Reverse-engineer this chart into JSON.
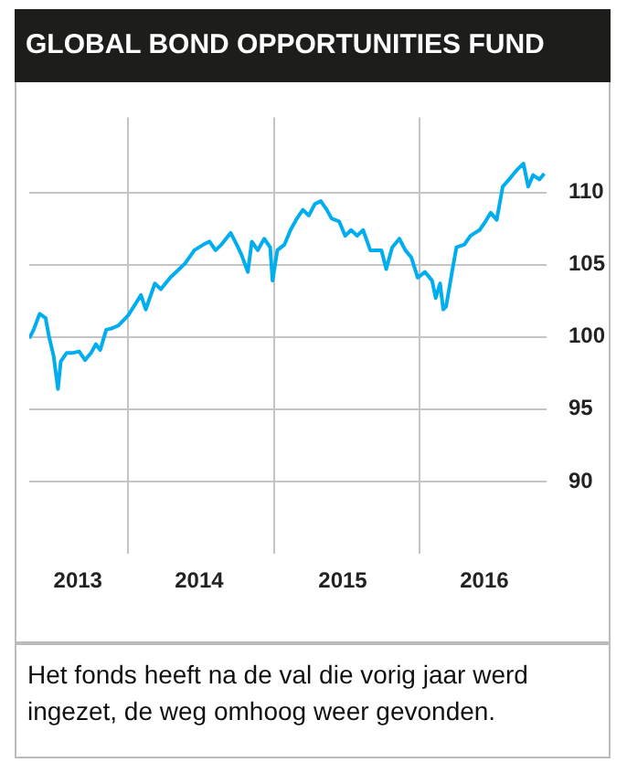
{
  "chart_data": {
    "type": "line",
    "title": "GLOBAL BOND OPPORTUNITIES FUND",
    "annotations": [
      "Het fonds heeft na de val die vorig jaar werd ingezet, de weg omhoog weer gevonden."
    ],
    "x": [
      "2013-04-28",
      "2013-05-09",
      "2013-05-24",
      "2013-06-08",
      "2013-06-16",
      "2013-06-28",
      "2013-07-09",
      "2013-07-16",
      "2013-07-31",
      "2013-08-16",
      "2013-08-31",
      "2013-09-15",
      "2013-09-30",
      "2013-10-12",
      "2013-10-23",
      "2013-11-07",
      "2013-11-22",
      "2013-12-08",
      "2014-01-01",
      "2014-01-15",
      "2014-02-02",
      "2014-02-14",
      "2014-03-09",
      "2014-03-24",
      "2014-04-16",
      "2014-05-09",
      "2014-05-24",
      "2014-06-16",
      "2014-07-09",
      "2014-07-24",
      "2014-08-08",
      "2014-08-23",
      "2014-09-15",
      "2014-09-30",
      "2014-10-12",
      "2014-10-28",
      "2014-11-07",
      "2014-11-22",
      "2014-12-08",
      "2014-12-23",
      "2014-12-29",
      "2015-01-10",
      "2015-01-28",
      "2015-02-12",
      "2015-02-28",
      "2015-03-15",
      "2015-03-30",
      "2015-04-14",
      "2015-04-29",
      "2015-05-14",
      "2015-05-26",
      "2015-06-14",
      "2015-06-29",
      "2015-07-14",
      "2015-07-29",
      "2015-08-13",
      "2015-08-31",
      "2015-09-13",
      "2015-09-28",
      "2015-10-10",
      "2015-10-25",
      "2015-11-12",
      "2015-11-27",
      "2015-12-12",
      "2015-12-28",
      "2016-01-15",
      "2016-02-02",
      "2016-02-11",
      "2016-02-22",
      "2016-03-01",
      "2016-03-08",
      "2016-03-23",
      "2016-04-03",
      "2016-04-23",
      "2016-05-08",
      "2016-05-31",
      "2016-06-15",
      "2016-06-28",
      "2016-07-13",
      "2016-07-28",
      "2016-08-16",
      "2016-09-03",
      "2016-09-18",
      "2016-09-30",
      "2016-10-12",
      "2016-10-28",
      "2016-11-09"
    ],
    "values": [
      99.9,
      100.5,
      101.6,
      101.3,
      100.1,
      98.7,
      96.4,
      98.3,
      98.9,
      98.9,
      99.0,
      98.4,
      98.9,
      99.5,
      99.1,
      100.5,
      100.6,
      100.8,
      101.5,
      102.1,
      102.9,
      101.9,
      103.7,
      103.3,
      104.1,
      104.7,
      105.1,
      106.0,
      106.4,
      106.6,
      106.0,
      106.4,
      107.2,
      106.4,
      105.7,
      104.5,
      106.6,
      106.0,
      106.8,
      106.2,
      103.9,
      106.0,
      106.4,
      107.4,
      108.2,
      108.8,
      108.4,
      109.2,
      109.4,
      108.8,
      108.2,
      108.0,
      107.0,
      107.4,
      107.0,
      107.4,
      106.0,
      106.0,
      106.0,
      104.7,
      106.2,
      106.8,
      106.0,
      105.5,
      104.1,
      104.5,
      103.9,
      102.7,
      103.7,
      101.9,
      102.1,
      104.5,
      106.2,
      106.4,
      107.0,
      107.4,
      108.0,
      108.6,
      108.1,
      110.4,
      111.0,
      111.6,
      112.0,
      110.4,
      111.2,
      110.9,
      111.3
    ],
    "color": "#00aeef",
    "marker": "none",
    "line_style": "solid",
    "grid": true,
    "legend": false,
    "xlim": [
      "2013-04-28",
      "2016-11-15"
    ],
    "xticks": [
      {
        "value": "2013-08-28",
        "label": "2013"
      },
      {
        "value": "2014-01-01",
        "label": null
      },
      {
        "value": "2014-06-28",
        "label": "2014"
      },
      {
        "value": "2015-01-01",
        "label": null
      },
      {
        "value": "2015-06-23",
        "label": "2015"
      },
      {
        "value": "2016-01-01",
        "label": null
      },
      {
        "value": "2016-06-12",
        "label": "2016"
      }
    ],
    "ylim": [
      85,
      115.2
    ],
    "yticks": [
      90,
      95,
      100,
      105,
      110
    ]
  }
}
